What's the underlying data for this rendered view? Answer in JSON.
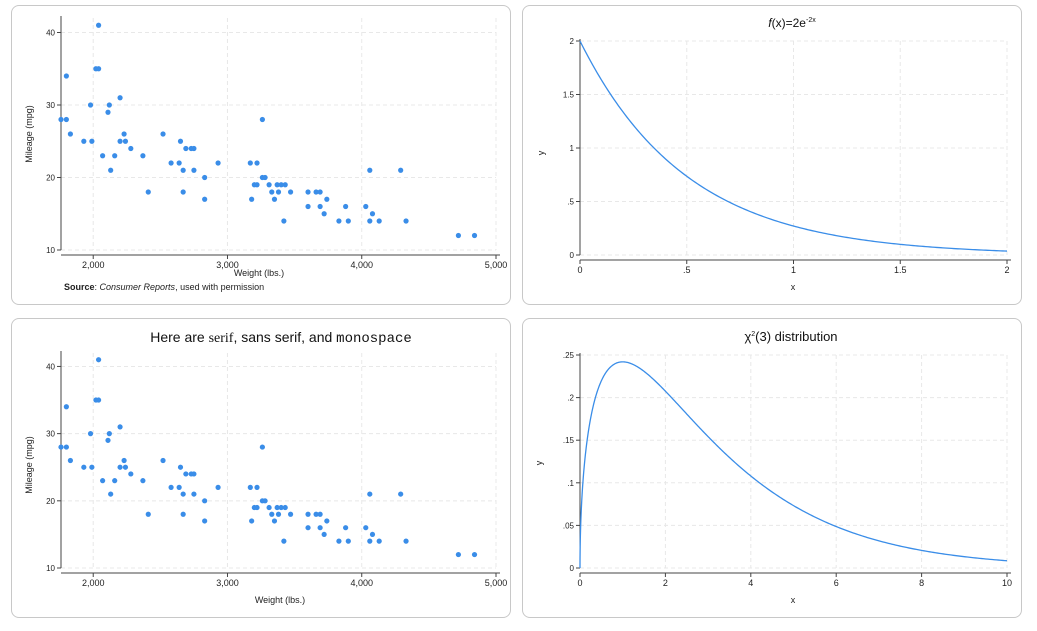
{
  "colors": {
    "series": "#3a8de8",
    "grid": "#e8e8e8",
    "axis": "#444444",
    "text": "#222222"
  },
  "scatter_points": [
    [
      1760,
      28
    ],
    [
      1800,
      28
    ],
    [
      1800,
      34
    ],
    [
      1830,
      26
    ],
    [
      1930,
      25
    ],
    [
      1980,
      30
    ],
    [
      1990,
      25
    ],
    [
      2020,
      35
    ],
    [
      2040,
      35
    ],
    [
      2040,
      41
    ],
    [
      2070,
      23
    ],
    [
      2110,
      29
    ],
    [
      2120,
      30
    ],
    [
      2130,
      21
    ],
    [
      2160,
      23
    ],
    [
      2200,
      31
    ],
    [
      2200,
      25
    ],
    [
      2230,
      26
    ],
    [
      2240,
      25
    ],
    [
      2280,
      24
    ],
    [
      2370,
      23
    ],
    [
      2410,
      18
    ],
    [
      2520,
      26
    ],
    [
      2580,
      22
    ],
    [
      2640,
      22
    ],
    [
      2650,
      25
    ],
    [
      2670,
      21
    ],
    [
      2670,
      18
    ],
    [
      2690,
      24
    ],
    [
      2730,
      24
    ],
    [
      2750,
      24
    ],
    [
      2750,
      21
    ],
    [
      2830,
      20
    ],
    [
      2830,
      17
    ],
    [
      2930,
      22
    ],
    [
      3170,
      22
    ],
    [
      3180,
      17
    ],
    [
      3200,
      19
    ],
    [
      3220,
      19
    ],
    [
      3220,
      22
    ],
    [
      3260,
      28
    ],
    [
      3260,
      20
    ],
    [
      3280,
      20
    ],
    [
      3310,
      19
    ],
    [
      3330,
      18
    ],
    [
      3350,
      17
    ],
    [
      3370,
      19
    ],
    [
      3380,
      18
    ],
    [
      3400,
      19
    ],
    [
      3420,
      14
    ],
    [
      3430,
      19
    ],
    [
      3470,
      18
    ],
    [
      3600,
      18
    ],
    [
      3600,
      16
    ],
    [
      3660,
      18
    ],
    [
      3690,
      16
    ],
    [
      3690,
      18
    ],
    [
      3720,
      15
    ],
    [
      3740,
      17
    ],
    [
      3830,
      14
    ],
    [
      3880,
      16
    ],
    [
      3900,
      14
    ],
    [
      4030,
      16
    ],
    [
      4060,
      21
    ],
    [
      4060,
      14
    ],
    [
      4080,
      15
    ],
    [
      4130,
      14
    ],
    [
      4290,
      21
    ],
    [
      4330,
      14
    ],
    [
      4720,
      12
    ],
    [
      4840,
      12
    ]
  ],
  "chart_data": [
    {
      "type": "scatter",
      "title": "",
      "xlabel": "Weight (lbs.)",
      "ylabel": "Mileage (mpg)",
      "xlim": [
        1760,
        5000
      ],
      "ylim": [
        10,
        42
      ],
      "xticks": [
        2000,
        3000,
        4000,
        5000
      ],
      "xtick_labels": [
        "2,000",
        "3,000",
        "4,000",
        "5,000"
      ],
      "yticks": [
        10,
        20,
        30,
        40
      ],
      "ytick_labels": [
        "10",
        "20",
        "30",
        "40"
      ],
      "note": {
        "label": "Source",
        "sep": ": ",
        "source": "Consumer Reports",
        "rest": ", used with permission"
      }
    },
    {
      "type": "line",
      "title": {
        "f": "f",
        "main": "(x)=2e",
        "sup": "-2x"
      },
      "function": "2*exp(-2*x)",
      "xlabel": "x",
      "ylabel": "y",
      "xlim": [
        0,
        2
      ],
      "ylim": [
        0,
        2
      ],
      "xticks": [
        0,
        0.5,
        1,
        1.5,
        2
      ],
      "xtick_labels": [
        "0",
        ".5",
        "1",
        "1.5",
        "2"
      ],
      "yticks": [
        0,
        0.5,
        1,
        1.5,
        2
      ],
      "ytick_labels": [
        "0",
        ".5",
        "1",
        "1.5",
        "2"
      ]
    },
    {
      "type": "scatter",
      "title": {
        "prefix": "Here are ",
        "serif": "serif",
        "mid": ", sans serif, and ",
        "mono": "monospace"
      },
      "xlabel": "Weight (lbs.)",
      "ylabel": "Mileage (mpg)",
      "xlim": [
        1760,
        5000
      ],
      "ylim": [
        10,
        42
      ],
      "xticks": [
        2000,
        3000,
        4000,
        5000
      ],
      "xtick_labels": [
        "2,000",
        "3,000",
        "4,000",
        "5,000"
      ],
      "yticks": [
        10,
        20,
        30,
        40
      ],
      "ytick_labels": [
        "10",
        "20",
        "30",
        "40"
      ]
    },
    {
      "type": "line",
      "title": {
        "chi": "χ",
        "sup": "2",
        "rest": "(3) distribution"
      },
      "function": "chi2pdf(3,x)",
      "xlabel": "x",
      "ylabel": "y",
      "xlim": [
        0,
        10
      ],
      "ylim": [
        0,
        0.25
      ],
      "xticks": [
        0,
        2,
        4,
        6,
        8,
        10
      ],
      "xtick_labels": [
        "0",
        "2",
        "4",
        "6",
        "8",
        "10"
      ],
      "yticks": [
        0,
        0.05,
        0.1,
        0.15,
        0.2,
        0.25
      ],
      "ytick_labels": [
        "0",
        ".05",
        ".1",
        ".15",
        ".2",
        ".25"
      ]
    }
  ]
}
